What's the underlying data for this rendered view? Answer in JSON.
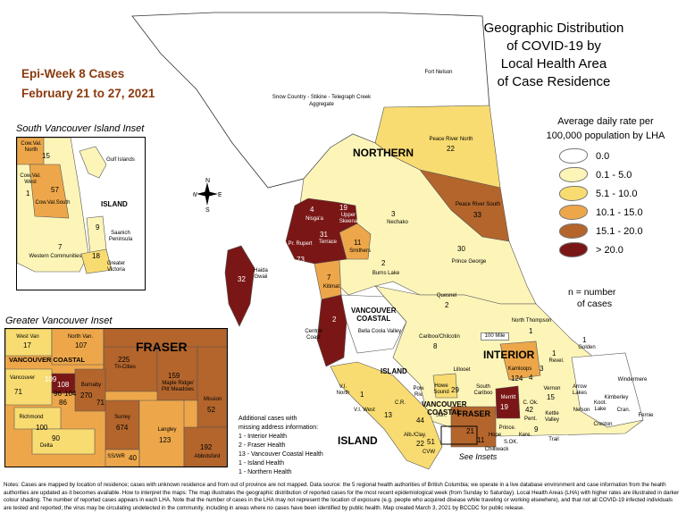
{
  "title": {
    "line1": "Geographic Distribution",
    "line2": "of COVID-19 by",
    "line3": "Local Health Area",
    "line4": "of Case Residence"
  },
  "epi": {
    "week": "Epi-Week 8 Cases",
    "dates": "February 21 to 27, 2021"
  },
  "legend": {
    "head1": "Average daily rate per",
    "head2": "100,000 population by LHA",
    "items": [
      {
        "label": "0.0",
        "color": "#ffffff"
      },
      {
        "label": "0.1 - 5.0",
        "color": "#fdf5b8"
      },
      {
        "label": "5.1 - 10.0",
        "color": "#f8dc71"
      },
      {
        "label": "10.1 - 15.0",
        "color": "#eda74a"
      },
      {
        "label": "15.1 - 20.0",
        "color": "#b3652c"
      },
      {
        "label": "> 20.0",
        "color": "#7a1716"
      }
    ],
    "n_line1": "n = number",
    "n_line2": "of cases"
  },
  "insets": {
    "svi_title": "South Vancouver Island Inset",
    "gv_title": "Greater Vancouver Inset",
    "see_insets": "See Insets"
  },
  "regions": {
    "northern": "NORTHERN",
    "interior": "INTERIOR",
    "vancouver_coastal": "VANCOUVER\nCOASTAL",
    "vancouver_coastal_a": "VANCOUVER",
    "vancouver_coastal_b": "COASTAL",
    "island": "ISLAND",
    "fraser": "FRASER"
  },
  "labels": {
    "fort_nelson": "Fort Nelson",
    "snow_country": "Snow Country - Stikine - Telegraph Creek",
    "aggregate": "Aggregate",
    "peace_north": "Peace River North",
    "peace_north_n": "22",
    "peace_south": "Peace River South",
    "peace_south_n": "33",
    "nechako": "Nechako",
    "nechako_n": "3",
    "prince_george": "Prince George",
    "prince_george_n": "30",
    "nisgaa": "Nisga'a",
    "nisgaa_n": "4",
    "upper_skeena": "Upper Skeena",
    "upper_skeena_n": "19",
    "terrace": "Terrace",
    "terrace_n": "31",
    "pr_rupert": "Pr. Rupert",
    "pr_rupert_n": "73",
    "smithers": "Smithers",
    "smithers_n": "11",
    "burns_lake": "Burns Lake",
    "burns_lake_n": "2",
    "haida": "Haida Gwaii",
    "haida_n": "32",
    "kitimat": "Kitimat",
    "kitimat_n": "7",
    "quesnel": "Quesnel",
    "quesnel_n": "2",
    "central_coast": "Central Coast",
    "central_coast_n": "2",
    "bella_coola": "Bella Coola Valley",
    "cariboo": "Cariboo/Chilcotin",
    "cariboo_n": "8",
    "north_thompson": "North Thompson",
    "north_thompson_n": "1",
    "hundred_mile": "100 Mile",
    "golden": "Golden",
    "golden_n": "1",
    "revel": "Revel.",
    "revel_n": "1",
    "kamloops": "Kamloops",
    "kamloops_n": "124",
    "merritt": "Merritt",
    "merritt_n": "19",
    "windermere": "Windermere",
    "nelson": "Nelson",
    "kimberley": "Kimberley",
    "fernie": "Fernie",
    "creston": "Creston",
    "cranbrook": "Cran.",
    "trail": "Trail",
    "sok": "S.OK.",
    "princeton": "Prince.",
    "keremeos": "Kere.",
    "penticton": "Pent.",
    "chilliwack": "Chilliwack",
    "hope": "Hope",
    "lillooet": "Lillooet",
    "howe_sound": "Howe Sound",
    "howe_sound_n": "29",
    "south_cariboo": "South Cariboo",
    "powell_river": "Pow. Riv.",
    "vi_north": "V.I. North",
    "vi_north_n": "1",
    "vi_west": "V.I. West",
    "cr": "C.R.",
    "alb_clay": "Alb./Clay.",
    "alb_clay_n": "22",
    "cvw": "CVW",
    "sun": "Sun.",
    "n13": "13",
    "n44": "44",
    "n51": "51",
    "n5": "5",
    "n11": "11",
    "n21": "21",
    "n4": "4",
    "n3": "3",
    "n15": "15",
    "n42": "42",
    "n9": "9",
    "fraser_small_n": "67",
    "vernon": "Vernon",
    "arrow": "Arrow Lakes",
    "kootenay": "Koot. Lake",
    "cent_ok": "C. Ok.",
    "kettle": "Kettle Valley"
  },
  "svi": {
    "cow_north": "Cow.Val. North",
    "cow_north_n": "15",
    "cow_west": "Cow.Val. West",
    "cow_west_n": "1",
    "cow_south": "Cow.Val.South",
    "cow_south_n": "57",
    "gulf": "Gulf Islands",
    "island": "ISLAND",
    "saanich": "Saanich Peninsula",
    "saanich_n": "9",
    "western": "Western Communities",
    "western_n": "7",
    "victoria": "Greater Victoria",
    "victoria_n": "18"
  },
  "gv": {
    "west_van": "West Van",
    "west_van_n": "17",
    "north_van": "North Van.",
    "north_van_n": "107",
    "fraser": "FRASER",
    "vc": "VANCOUVER COASTAL",
    "tri_cities": "Tri-Cities",
    "tri_cities_n": "225",
    "maple": "Maple Ridge/ Pitt Meadows",
    "maple_n": "159",
    "vancouver": "Vancouver",
    "vancouver_n": "71",
    "n109": "109",
    "n108": "108",
    "n96": "96",
    "n104": "104",
    "n86": "86",
    "burnaby": "Burnaby",
    "burnaby_n": "270",
    "n71b": "71",
    "richmond": "Richmond",
    "richmond_n": "100",
    "delta": "Delta",
    "delta_n": "90",
    "surrey": "Surrey",
    "surrey_n": "674",
    "langley": "Langley",
    "langley_n": "123",
    "mission": "Mission",
    "mission_n": "52",
    "abbotsford": "Abbotsford",
    "abbotsford_n": "192",
    "sswr": "SS/WR",
    "sswr_n": "40"
  },
  "additional": {
    "l1": "Additional cases with",
    "l2": "missing address information:",
    "l3": "1 - Interior Health",
    "l4": "2 - Fraser Health",
    "l5": "13 - Vancouver Coastal Health",
    "l6": "1 - Island Health",
    "l7": "1 - Northern Health"
  },
  "compass": {
    "n": "N",
    "s": "S",
    "e": "E",
    "w": "W"
  },
  "notes": "Notes: Cases are mapped by location of residence; cases with unknown residence and from out of province are not mapped. Data source: the 5 regional health authorities of British Columbia; we operate in a live database environment and case information from the health authorities are updated as it becomes available. How to interpret the maps: The map illustrates the geographic distribution of reported cases for the most recent epidemiological week (from Sunday to Saturday). Local Health Areas (LHA) with higher rates are illustrated in darker colour shading. The number of reported cases appears in each LHA. Note that the number of cases in the LHA may not represent the location of exposure (e.g. people who acquired disease while traveling or working elsewhere), and that not all COVID-19 infected individuals are tested and reported; the virus may be circulating undetected in the community, including in areas where no cases have been identified by public health. Map created March 3, 2021 by BCCDC for public release."
}
